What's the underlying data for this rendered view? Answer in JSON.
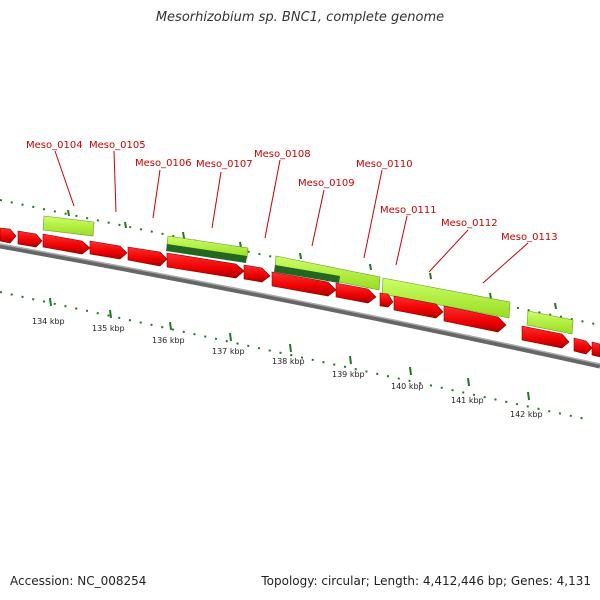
{
  "title": "Mesorhizobium sp. BNC1, complete genome",
  "footer": {
    "accession": "Accession: NC_008254",
    "summary": "Topology: circular; Length: 4,412,446 bp; Genes: 4,131"
  },
  "colors": {
    "cds": "#ee0000",
    "cds_shadow": "#990000",
    "feature_light": "#aaee33",
    "feature_dark": "#226622",
    "backbone": "#888888",
    "tick": "#227722",
    "label": "#cc0000"
  },
  "gene_labels": [
    "Meso_0104",
    "Meso_0105",
    "Meso_0106",
    "Meso_0107",
    "Meso_0108",
    "Meso_0109",
    "Meso_0110",
    "Meso_0111",
    "Meso_0112",
    "Meso_0113"
  ],
  "kbp_labels": [
    "134 kbp",
    "135 kbp",
    "136 kbp",
    "137 kbp",
    "138 kbp",
    "139 kbp",
    "140 kbp",
    "141 kbp",
    "142 kbp"
  ]
}
